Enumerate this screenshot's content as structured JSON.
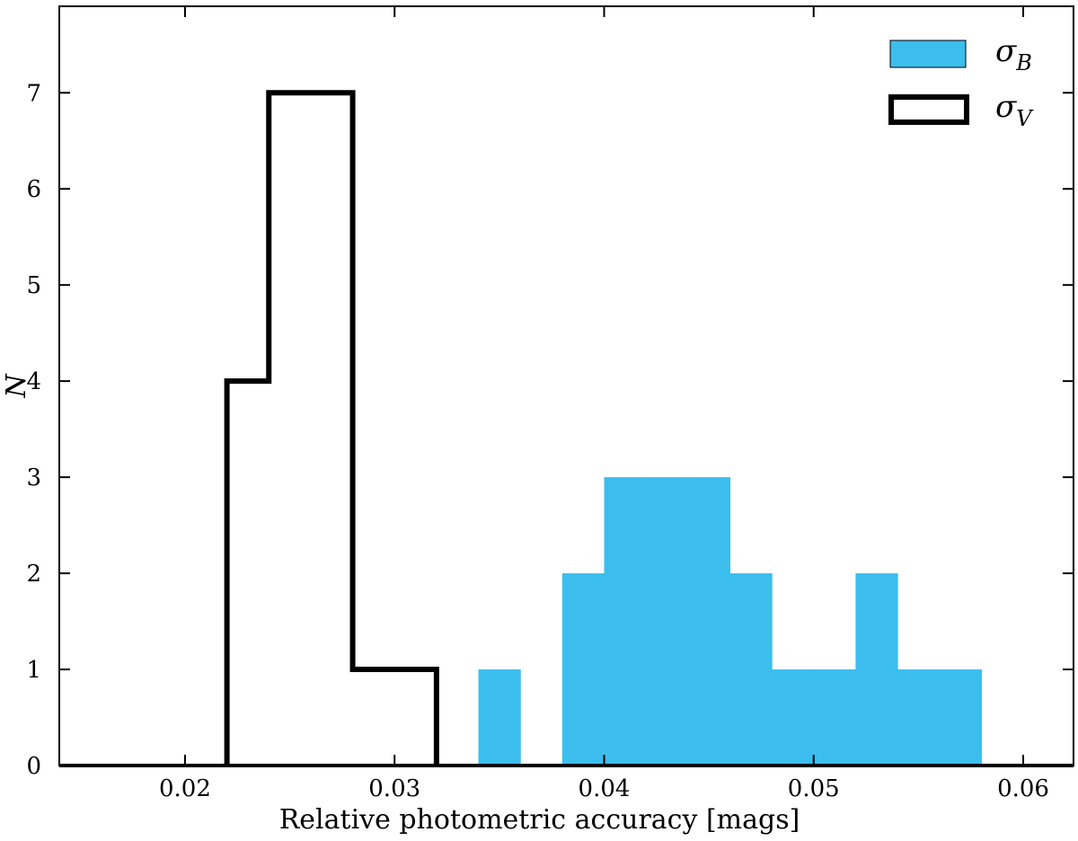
{
  "chart_data": {
    "type": "histogram",
    "xlabel": "Relative photometric accuracy [mags]",
    "ylabel": "N",
    "xlim": [
      0.014,
      0.0624
    ],
    "ylim": [
      0,
      7.9
    ],
    "xticks": [
      0.02,
      0.03,
      0.04,
      0.05,
      0.06
    ],
    "xtick_labels": [
      "0.02",
      "0.03",
      "0.04",
      "0.05",
      "0.06"
    ],
    "yticks": [
      0,
      1,
      2,
      3,
      4,
      5,
      6,
      7
    ],
    "ytick_labels": [
      "0",
      "1",
      "2",
      "3",
      "4",
      "5",
      "6",
      "7"
    ],
    "legend_position": "top-right",
    "series": [
      {
        "name": "σB",
        "legend_symbol": "σ",
        "legend_sub": "B",
        "style": "filled",
        "color": "#3bbeed",
        "bins": [
          {
            "x0": 0.034,
            "x1": 0.036,
            "count": 1
          },
          {
            "x0": 0.038,
            "x1": 0.04,
            "count": 2
          },
          {
            "x0": 0.04,
            "x1": 0.042,
            "count": 3
          },
          {
            "x0": 0.042,
            "x1": 0.044,
            "count": 3
          },
          {
            "x0": 0.044,
            "x1": 0.046,
            "count": 3
          },
          {
            "x0": 0.046,
            "x1": 0.048,
            "count": 2
          },
          {
            "x0": 0.048,
            "x1": 0.05,
            "count": 1
          },
          {
            "x0": 0.05,
            "x1": 0.052,
            "count": 1
          },
          {
            "x0": 0.052,
            "x1": 0.054,
            "count": 2
          },
          {
            "x0": 0.054,
            "x1": 0.056,
            "count": 1
          },
          {
            "x0": 0.056,
            "x1": 0.058,
            "count": 1
          }
        ]
      },
      {
        "name": "σV",
        "legend_symbol": "σ",
        "legend_sub": "V",
        "style": "step",
        "color": "#000000",
        "bins": [
          {
            "x0": 0.022,
            "x1": 0.024,
            "count": 4
          },
          {
            "x0": 0.024,
            "x1": 0.026,
            "count": 7
          },
          {
            "x0": 0.026,
            "x1": 0.028,
            "count": 7
          },
          {
            "x0": 0.028,
            "x1": 0.03,
            "count": 1
          },
          {
            "x0": 0.03,
            "x1": 0.032,
            "count": 1
          }
        ]
      }
    ]
  }
}
